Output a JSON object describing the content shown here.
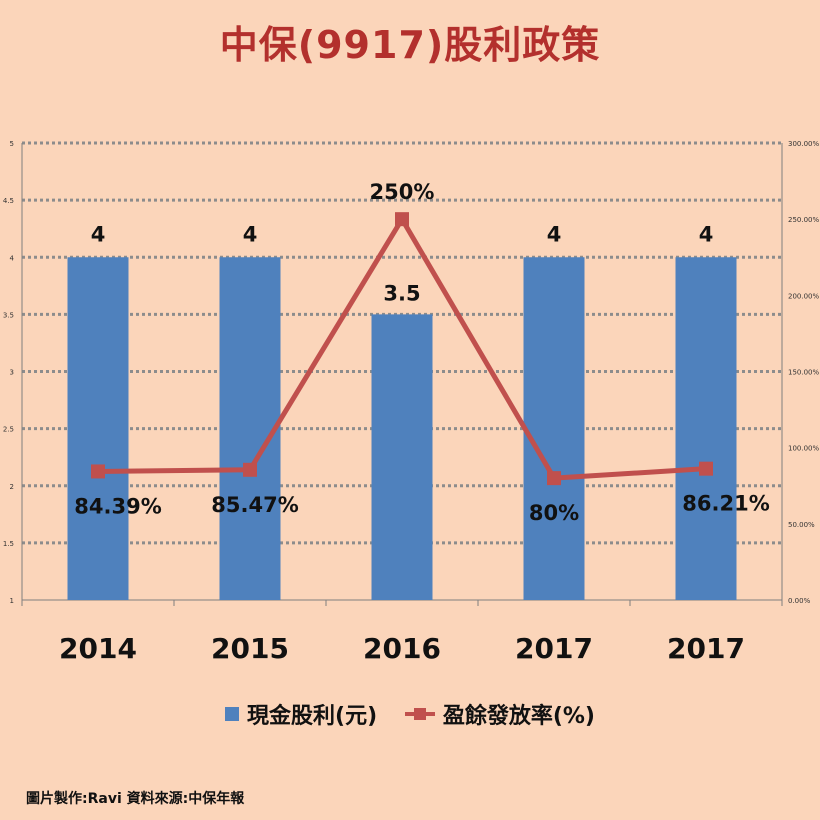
{
  "chart_data": {
    "type": "bar",
    "title": "中保(9917)股利政策",
    "categories": [
      "2014",
      "2015",
      "2016",
      "2017",
      "2017"
    ],
    "series": [
      {
        "name": "現金股利(元)",
        "type": "bar",
        "axis": "left",
        "values": [
          4,
          4,
          3.5,
          4,
          4
        ],
        "labels": [
          "4",
          "4",
          "3.5",
          "4",
          "4"
        ]
      },
      {
        "name": "盈餘發放率(%)",
        "type": "line",
        "axis": "right",
        "values": [
          84.39,
          85.47,
          250,
          80,
          86.21
        ],
        "labels": [
          "84.39%",
          "85.47%",
          "250%",
          "80%",
          "86.21%"
        ]
      }
    ],
    "ylim": [
      1,
      5
    ],
    "yticks": [
      "1",
      "1.5",
      "2",
      "2.5",
      "3",
      "3.5",
      "4",
      "4.5",
      "5"
    ],
    "y2lim": [
      0,
      300
    ],
    "y2ticks": [
      "0.00%",
      "50.00%",
      "100.00%",
      "150.00%",
      "200.00%",
      "250.00%",
      "300.00%"
    ],
    "xlabel": "",
    "ylabel": "",
    "grid": true,
    "legend": "bottom",
    "colors": {
      "bar": "#4F81BD",
      "line": "#C0504D",
      "title": "#B3302D",
      "background": "#FBD5BA"
    }
  },
  "footer": {
    "credit": "圖片製作:Ravi  資料來源:中保年報"
  }
}
